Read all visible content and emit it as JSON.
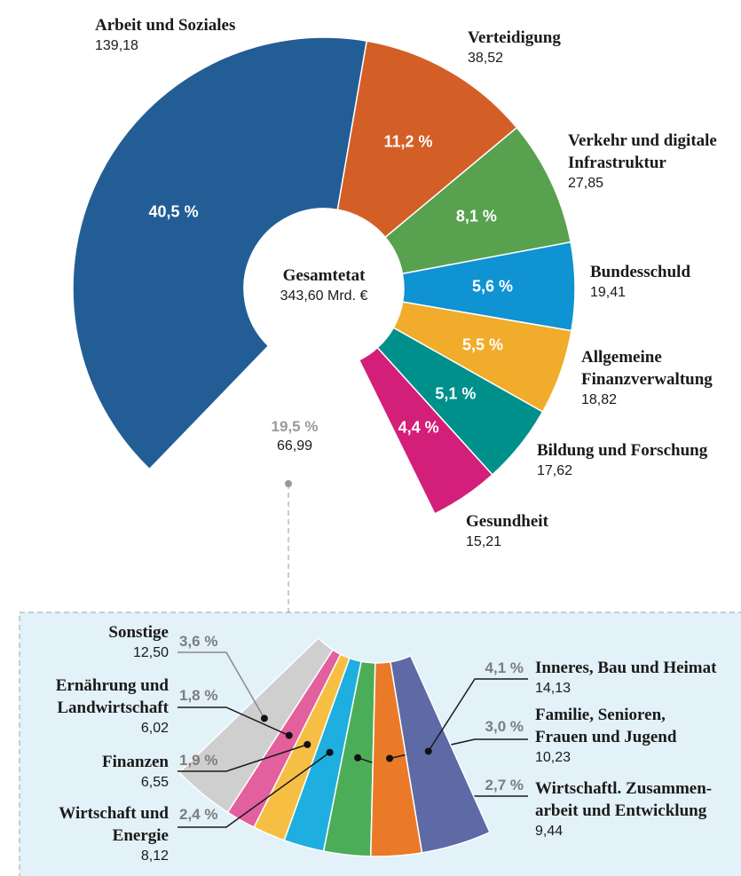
{
  "chart_data": [
    {
      "type": "pie",
      "center_title": "Gesamtetat",
      "center_label": "343,60 Mrd. €",
      "total": 343.6,
      "categories": [
        "Arbeit und Soziales",
        "Verteidigung",
        "Verkehr und digitale\nInfrastruktur",
        "Bundesschuld",
        "Allgemeine\nFinanzverwaltung",
        "Bildung und Forschung",
        "Gesundheit",
        null
      ],
      "values": [
        139.18,
        38.52,
        27.85,
        19.41,
        18.82,
        17.62,
        15.21,
        66.99
      ],
      "value_labels": [
        "139,18",
        "38,52",
        "27,85",
        "19,41",
        "18,82",
        "17,62",
        "15,21",
        "66,99"
      ],
      "shares": [
        40.5,
        11.2,
        8.1,
        5.6,
        5.5,
        5.1,
        4.4,
        19.5
      ],
      "share_labels": [
        "40,5 %",
        "11,2 %",
        "8,1 %",
        "5,6 %",
        "5,5 %",
        "5,1 %",
        "4,4 %",
        "19,5 %"
      ],
      "colors": [
        "#235d96",
        "#d35f27",
        "#58a14e",
        "#0f93d2",
        "#f0ac2a",
        "#00908c",
        "#d31f79",
        null
      ]
    },
    {
      "type": "pie",
      "categories": [
        "Sonstige",
        "Ernährung und\nLandwirtschaft",
        "Finanzen",
        "Wirtschaft und\nEnergie",
        "Wirtschaftl. Zusammen-\narbeit und Entwicklung",
        "Familie, Senioren,\nFrauen und Jugend",
        "Inneres, Bau und Heimat"
      ],
      "values": [
        12.5,
        6.02,
        6.55,
        8.12,
        9.44,
        10.23,
        14.13
      ],
      "value_labels": [
        "12,50",
        "6,02",
        "6,55",
        "8,12",
        "9,44",
        "10,23",
        "14,13"
      ],
      "shares": [
        3.6,
        1.8,
        1.9,
        2.4,
        2.7,
        3.0,
        4.1
      ],
      "share_labels": [
        "3,6 %",
        "1,8 %",
        "1,9 %",
        "2,4 %",
        "2,7 %",
        "3,0 %",
        "4,1 %"
      ],
      "colors": [
        "#cfcfcf",
        "#e2609e",
        "#f6bf44",
        "#1eaee0",
        "#4cad58",
        "#ea7a28",
        "#5e6aa6"
      ]
    }
  ]
}
